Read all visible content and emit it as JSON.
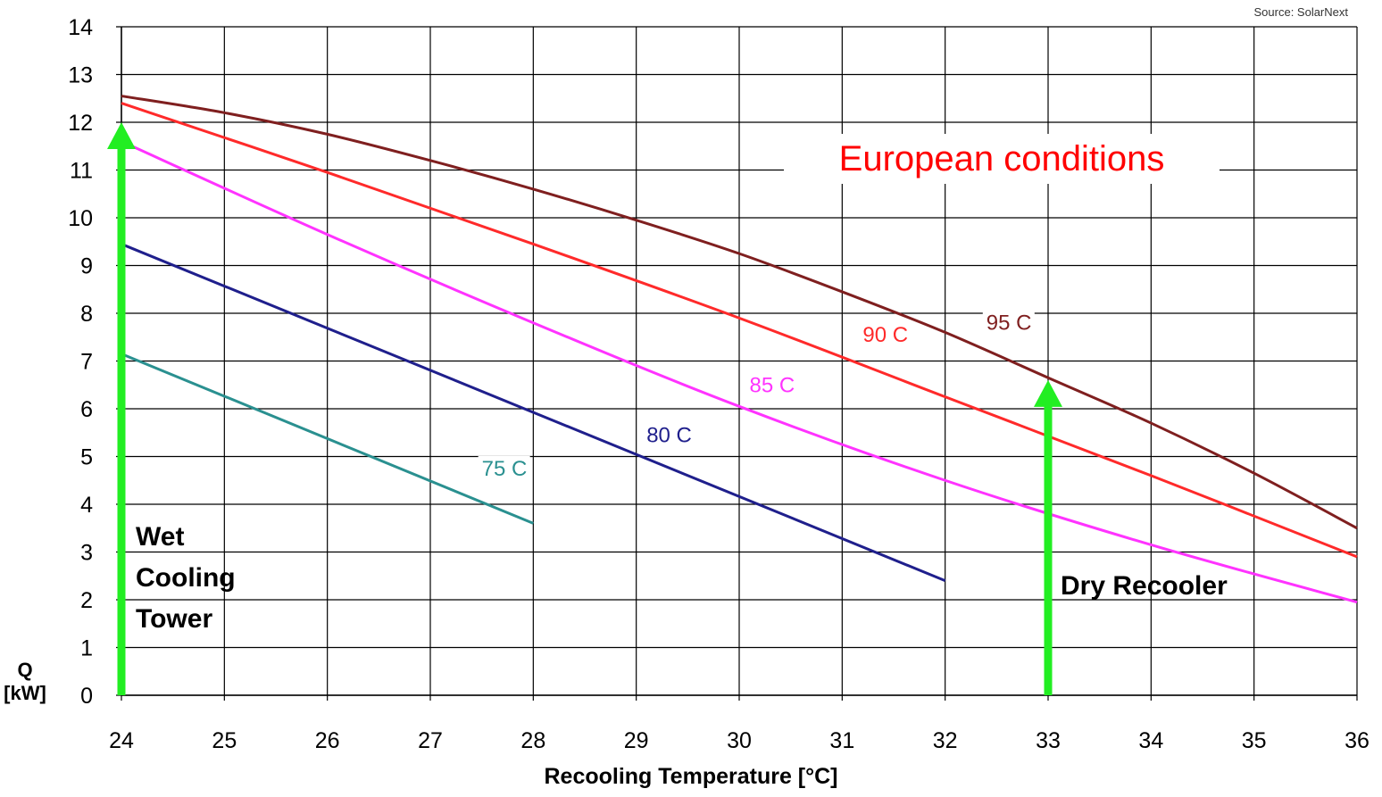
{
  "source": "Source: SolarNext",
  "annotations": {
    "european": "European conditions",
    "wet_line1": "Wet",
    "wet_line2": "Cooling",
    "wet_line3": "Tower",
    "dry": "Dry Recooler"
  },
  "chart_data": {
    "type": "line",
    "xlabel": "Recooling Temperature [°C]",
    "ylabel_line1": "Q",
    "ylabel_line2": "[kW]",
    "xlim": [
      24,
      36
    ],
    "ylim": [
      0,
      14
    ],
    "xticks": [
      24,
      25,
      26,
      27,
      28,
      29,
      30,
      31,
      32,
      33,
      34,
      35,
      36
    ],
    "yticks": [
      0,
      1,
      2,
      3,
      4,
      5,
      6,
      7,
      8,
      9,
      10,
      11,
      12,
      13,
      14
    ],
    "grid": true,
    "series": [
      {
        "name": "75 C",
        "color": "#2a9090",
        "x": [
          24,
          28
        ],
        "y": [
          7.15,
          3.6
        ],
        "label_at": [
          27.5,
          4.6
        ]
      },
      {
        "name": "80 C",
        "color": "#1f1f8c",
        "x": [
          24,
          32
        ],
        "y": [
          9.45,
          2.4
        ],
        "label_at": [
          29.1,
          5.3
        ]
      },
      {
        "name": "85 C",
        "color": "#ff33ff",
        "x": [
          24,
          26,
          28,
          30,
          32,
          34,
          36
        ],
        "y": [
          11.6,
          9.65,
          7.8,
          6.05,
          4.5,
          3.15,
          1.95
        ],
        "label_at": [
          30.1,
          6.35
        ]
      },
      {
        "name": "90 C",
        "color": "#ff2a2a",
        "x": [
          24,
          26,
          28,
          30,
          32,
          34,
          36
        ],
        "y": [
          12.4,
          10.95,
          9.45,
          7.9,
          6.25,
          4.6,
          2.9
        ],
        "label_at": [
          31.2,
          7.4
        ]
      },
      {
        "name": "95 C",
        "color": "#7f1f1f",
        "x": [
          24,
          25,
          26,
          27,
          28,
          29,
          30,
          31,
          32,
          33,
          34,
          35,
          36
        ],
        "y": [
          12.55,
          12.2,
          11.75,
          11.2,
          10.6,
          9.95,
          9.25,
          8.45,
          7.6,
          6.65,
          5.7,
          4.65,
          3.5
        ],
        "label_at": [
          32.4,
          7.65
        ]
      }
    ],
    "arrows": [
      {
        "name": "Wet Cooling Tower",
        "x": 24,
        "y_from": 0,
        "y_to": 12.0,
        "color": "#22ee22"
      },
      {
        "name": "Dry Recooler",
        "x": 33,
        "y_from": 0,
        "y_to": 6.6,
        "color": "#22ee22"
      }
    ]
  }
}
